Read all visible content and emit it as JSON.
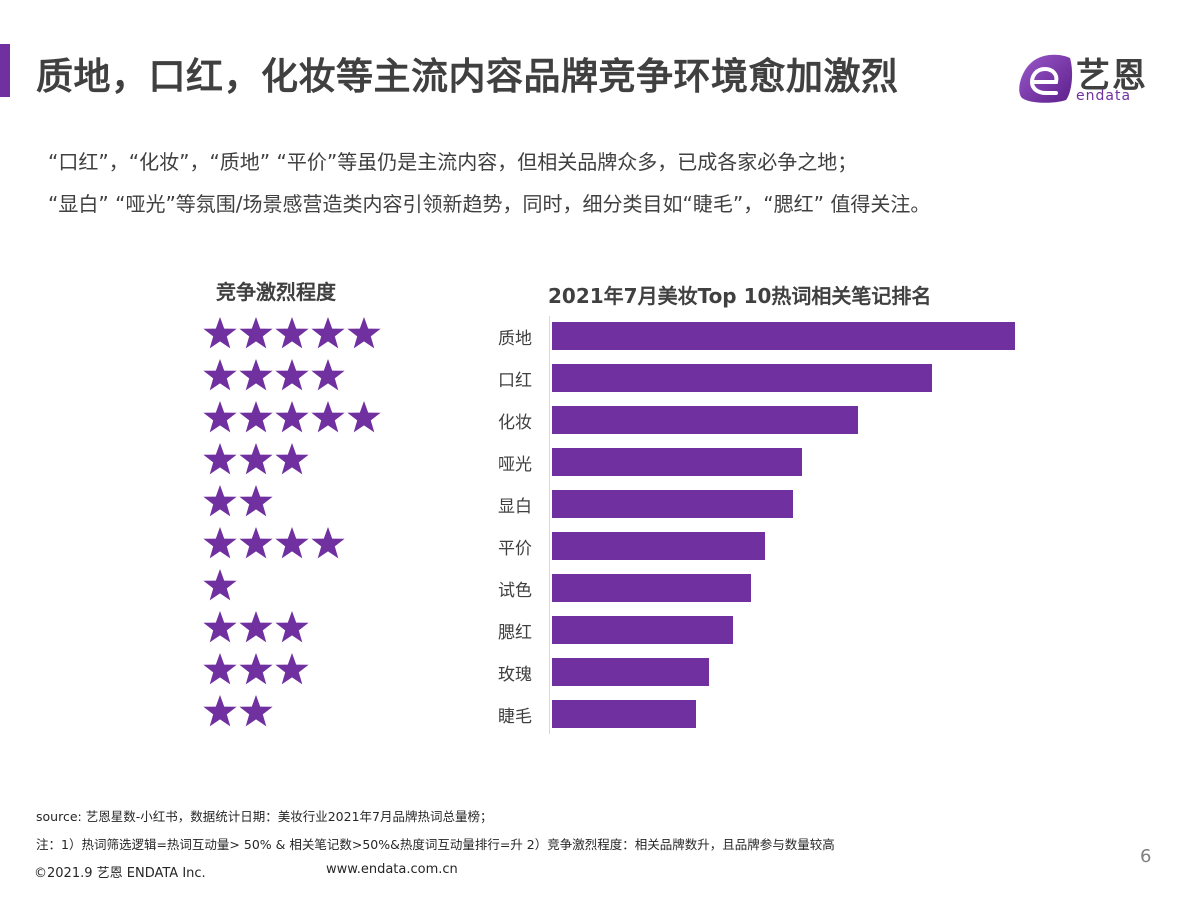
{
  "header": {
    "title": "质地，口红，化妆等主流内容品牌竞争环境愈加激烈",
    "accent_color": "#7030a0",
    "logo": {
      "cn": "艺恩",
      "en": "endata",
      "icon": "endata-logo-icon"
    }
  },
  "subtitle": {
    "line1": "“口红”，“化妆”，“质地”  “平价”等虽仍是主流内容，但相关品牌众多，已成各家必争之地；",
    "line2": "“显白”  “哑光”等氛围/场景感营造类内容引领新趋势，同时，细分类目如“睫毛”，“腮红”  值得关注。"
  },
  "competition": {
    "title": "竞争激烈程度",
    "icon": "star-icon",
    "star_color": "#7030a0",
    "ratings": [
      5,
      4,
      5,
      3,
      2,
      4,
      1,
      3,
      3,
      2
    ]
  },
  "chart_data": {
    "type": "bar",
    "orientation": "horizontal",
    "title": "2021年7月美妆Top 10热词相关笔记排名",
    "xlabel": "",
    "ylabel": "",
    "categories": [
      "质地",
      "口红",
      "化妆",
      "哑光",
      "显白",
      "平价",
      "试色",
      "腮红",
      "玫瑰",
      "睫毛"
    ],
    "values": [
      100,
      82,
      66,
      54,
      52,
      46,
      43,
      39,
      34,
      31
    ],
    "value_unit": "relative (no axis shown, % of top bar)",
    "competition_stars": [
      5,
      4,
      5,
      3,
      2,
      4,
      1,
      3,
      3,
      2
    ],
    "bar_color": "#7030a0",
    "grid": false,
    "legend": null
  },
  "footer": {
    "source": "source: 艺恩星数-小红书，数据统计日期：美妆行业2021年7月品牌热词总量榜；",
    "note": "注：1）热词筛选逻辑=热词互动量> 50% & 相关笔记数>50%&热度词互动量排行=升     2）竞争激烈程度：相关品牌数升，且品牌参与数量较高",
    "copyright": "©2021.9 艺恩 ENDATA Inc.",
    "website": "www.endata.com.cn",
    "page_number": "6"
  }
}
